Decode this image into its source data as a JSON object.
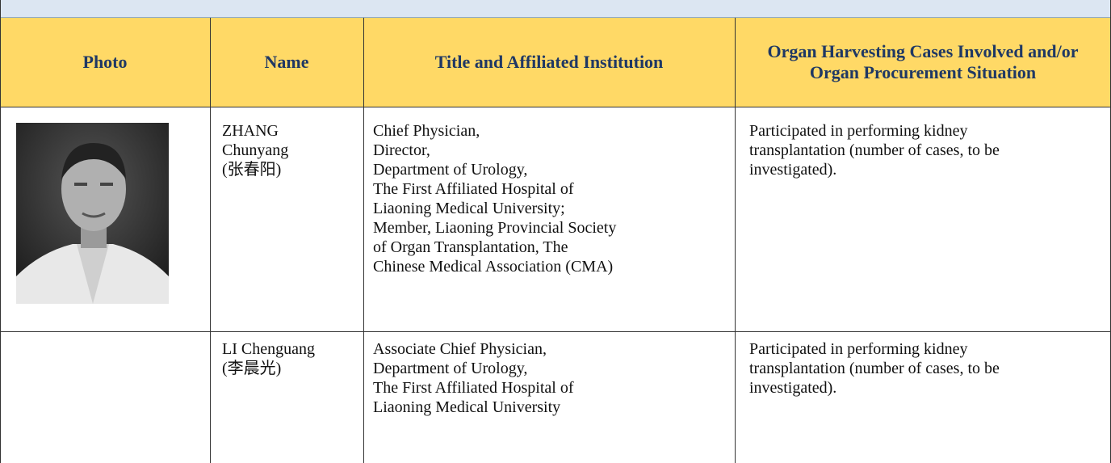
{
  "table": {
    "header": [
      "Photo",
      "Name",
      "Title and Affiliated Institution",
      "Organ Harvesting Cases Involved and/or Organ Procurement Situation"
    ],
    "rows": [
      {
        "name": [
          "ZHANG",
          "Chunyang",
          "(张春阳)"
        ],
        "title": [
          "Chief Physician,",
          "Director,",
          "Department of Urology,",
          "The First Affiliated Hospital of",
          "Liaoning Medical University;",
          "Member, Liaoning  Provincial Society",
          "of Organ Transplantation, The",
          "Chinese Medical Association (CMA)"
        ],
        "cases": [
          "Participated in performing kidney",
          "transplantation (number of cases, to be",
          "investigated)."
        ]
      },
      {
        "name": [
          "LI Chenguang",
          "(李晨光)"
        ],
        "title": [
          "Associate Chief Physician,",
          "Department of Urology,",
          "The First Affiliated Hospital of",
          "Liaoning Medical University"
        ],
        "cases": [
          "Participated in performing kidney",
          "transplantation (number of cases, to be",
          "investigated)."
        ]
      }
    ]
  }
}
